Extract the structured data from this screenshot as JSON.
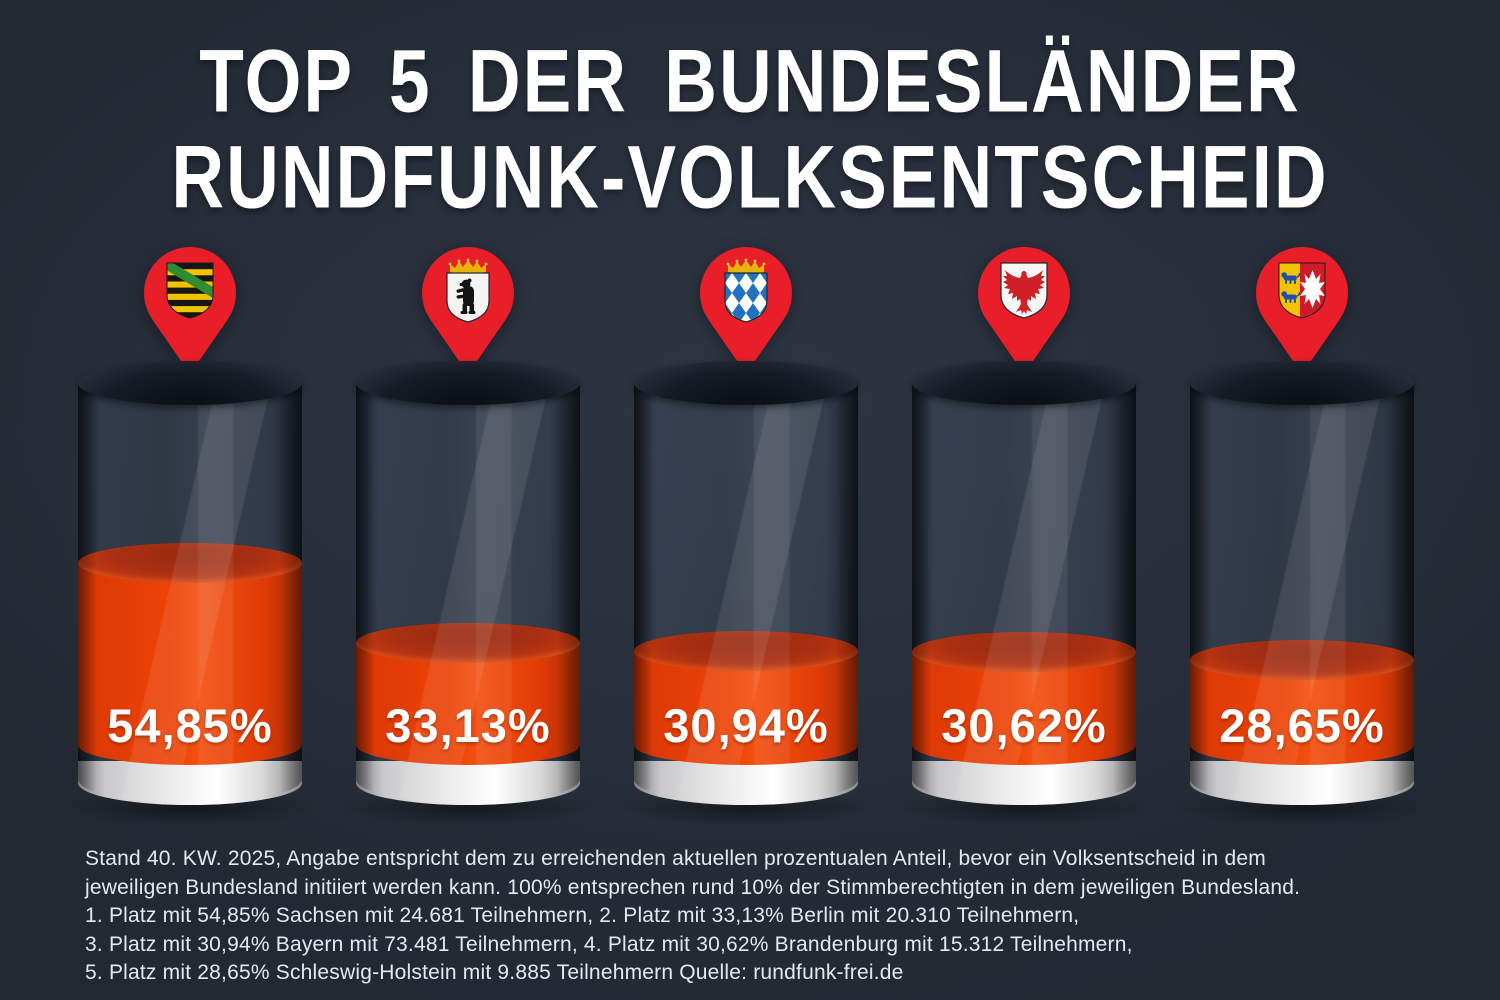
{
  "title": {
    "line1": "TOP 5 DER BUNDESLÄNDER",
    "line2": "RUNDFUNK-VOLKSENTSCHEID"
  },
  "chart_data": {
    "type": "bar",
    "subtype": "cylinder-fill-gauge",
    "unit": "%",
    "value_range": [
      0,
      100
    ],
    "categories": [
      "Sachsen",
      "Berlin",
      "Bayern",
      "Brandenburg",
      "Schleswig-Holstein"
    ],
    "values": [
      54.85,
      33.13,
      30.94,
      30.62,
      28.65
    ],
    "items": [
      {
        "rank": 1,
        "state": "Sachsen",
        "value": 54.85,
        "value_label": "54,85%",
        "participants": 24681,
        "pin_icon": "saxony-coat-of-arms"
      },
      {
        "rank": 2,
        "state": "Berlin",
        "value": 33.13,
        "value_label": "33,13%",
        "participants": 20310,
        "pin_icon": "berlin-coat-of-arms"
      },
      {
        "rank": 3,
        "state": "Bayern",
        "value": 30.94,
        "value_label": "30,94%",
        "participants": 73481,
        "pin_icon": "bavaria-coat-of-arms"
      },
      {
        "rank": 4,
        "state": "Brandenburg",
        "value": 30.62,
        "value_label": "30,62%",
        "participants": 15312,
        "pin_icon": "brandenburg-coat-of-arms"
      },
      {
        "rank": 5,
        "state": "Schleswig-Holstein",
        "value": 28.65,
        "value_label": "28,65%",
        "participants": 9885,
        "pin_icon": "schleswig-holstein-coat-of-arms"
      }
    ],
    "title": "TOP 5 DER BUNDESLÄNDER RUNDFUNK-VOLKSENTSCHEID",
    "legend": "none",
    "grid": "off"
  },
  "footer": {
    "lines": [
      "Stand 40. KW. 2025, Angabe entspricht dem zu erreichenden aktuellen prozentualen Anteil, bevor ein Volksentscheid in dem",
      "jeweiligen Bundesland initiiert werden kann. 100% entsprechen rund 10% der Stimmberechtigten in dem jeweiligen Bundesland.",
      "1. Platz mit 54,85% Sachsen mit 24.681 Teilnehmern, 2. Platz mit 33,13% Berlin mit 20.310 Teilnehmern,",
      "3. Platz mit 30,94% Bayern mit 73.481 Teilnehmern, 4. Platz mit 30,62% Brandenburg mit 15.312 Teilnehmern,",
      "5. Platz mit 28,65% Schleswig-Holstein mit 9.885 Teilnehmern Quelle: rundfunk-frei.de"
    ],
    "source": "rundfunk-frei.de"
  },
  "colors": {
    "background": "#222833",
    "liquid_orange": "#ed4306",
    "pin_red": "#e81f29",
    "base_gray": "#efefef",
    "title_text": "#ffffff",
    "footer_text": "#e5e8ee"
  }
}
